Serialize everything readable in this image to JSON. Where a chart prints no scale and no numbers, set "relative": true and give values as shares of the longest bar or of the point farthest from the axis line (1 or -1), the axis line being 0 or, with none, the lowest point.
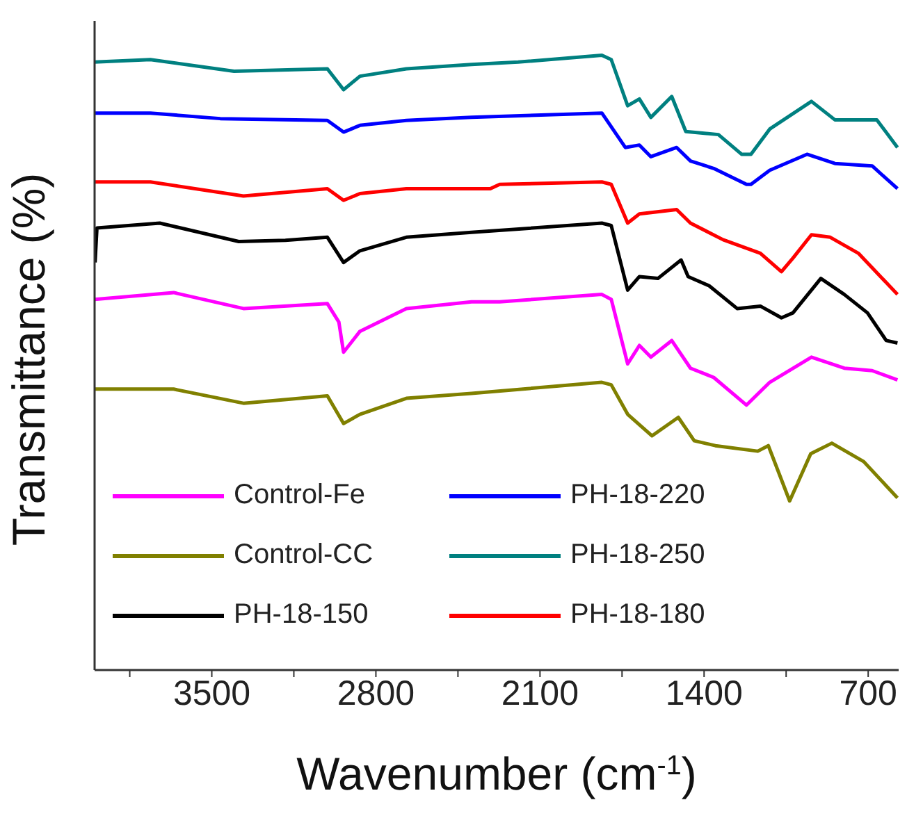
{
  "chart_data": {
    "type": "line",
    "xlabel": "Wavenumber (cm$^{-1}$)",
    "ylabel": "Transmittance (%)",
    "relative": true,
    "tick_labels": "x",
    "legend": "bottom left",
    "grid": false,
    "marker": "none",
    "line_style": "solid",
    "xlim": [
      4000,
      570
    ],
    "xticks": [
      {
        "value": 3850,
        "label": null
      },
      3500,
      {
        "value": 3150,
        "label": null
      },
      2800,
      {
        "value": 2450,
        "label": null
      },
      2100,
      {
        "value": 1750,
        "label": null
      },
      1400,
      {
        "value": 1050,
        "label": null
      },
      700
    ],
    "series": [
      {
        "name": "Control-Fe",
        "color": "#ff00ff",
        "x": [
          4000,
          3663,
          3365,
          3007,
          2958,
          2938,
          2868,
          2670,
          2392,
          2272,
          1836,
          1796,
          1726,
          1676,
          1627,
          1538,
          1458,
          1359,
          1219,
          1120,
          942,
          802,
          683,
          575
        ],
        "values": [
          0.603,
          0.614,
          0.588,
          0.596,
          0.566,
          0.517,
          0.551,
          0.588,
          0.599,
          0.599,
          0.611,
          0.603,
          0.498,
          0.528,
          0.509,
          0.536,
          0.491,
          0.476,
          0.431,
          0.468,
          0.509,
          0.491,
          0.487,
          0.472
        ]
      },
      {
        "name": "Control-CC",
        "color": "#808000",
        "x": [
          4000,
          3663,
          3365,
          3007,
          2938,
          2868,
          2670,
          2392,
          1836,
          1796,
          1726,
          1622,
          1510,
          1442,
          1352,
          1171,
          1126,
          1035,
          945,
          855,
          719,
          575
        ],
        "values": [
          0.457,
          0.457,
          0.434,
          0.446,
          0.401,
          0.416,
          0.442,
          0.45,
          0.468,
          0.464,
          0.416,
          0.381,
          0.411,
          0.373,
          0.365,
          0.356,
          0.365,
          0.275,
          0.352,
          0.369,
          0.339,
          0.28
        ]
      },
      {
        "name": "PH-18-150",
        "color": "#000000",
        "x": [
          3998,
          3990,
          3722,
          3385,
          3186,
          3007,
          2938,
          2868,
          2670,
          2392,
          1836,
          1796,
          1726,
          1676,
          1597,
          1498,
          1468,
          1378,
          1259,
          1160,
          1070,
          1021,
          902,
          802,
          703,
          623,
          575
        ],
        "values": [
          0.663,
          0.719,
          0.727,
          0.697,
          0.699,
          0.704,
          0.663,
          0.682,
          0.704,
          0.712,
          0.727,
          0.723,
          0.618,
          0.64,
          0.637,
          0.667,
          0.64,
          0.625,
          0.588,
          0.592,
          0.573,
          0.581,
          0.637,
          0.611,
          0.581,
          0.536,
          0.532
        ]
      },
      {
        "name": "PH-18-220",
        "color": "#0000ff",
        "x": [
          4000,
          3762,
          3464,
          3007,
          2938,
          2868,
          2670,
          2392,
          1836,
          1736,
          1676,
          1627,
          1517,
          1458,
          1359,
          1219,
          1200,
          1120,
          961,
          842,
          683,
          575
        ],
        "values": [
          0.906,
          0.906,
          0.897,
          0.894,
          0.875,
          0.886,
          0.894,
          0.899,
          0.906,
          0.85,
          0.854,
          0.835,
          0.85,
          0.828,
          0.816,
          0.79,
          0.79,
          0.813,
          0.839,
          0.824,
          0.82,
          0.783
        ]
      },
      {
        "name": "PH-18-250",
        "color": "#008080",
        "x": [
          4000,
          3762,
          3405,
          3007,
          2938,
          2868,
          2670,
          2392,
          2193,
          1836,
          1796,
          1726,
          1676,
          1627,
          1538,
          1478,
          1339,
          1240,
          1200,
          1120,
          942,
          842,
          663,
          575
        ],
        "values": [
          0.989,
          0.993,
          0.974,
          0.978,
          0.944,
          0.966,
          0.978,
          0.985,
          0.989,
          1.0,
          0.993,
          0.918,
          0.929,
          0.899,
          0.933,
          0.876,
          0.871,
          0.839,
          0.839,
          0.88,
          0.925,
          0.895,
          0.895,
          0.85
        ]
      },
      {
        "name": "PH-18-180",
        "color": "#ff0000",
        "x": [
          4000,
          3762,
          3365,
          3007,
          2938,
          2868,
          2670,
          2312,
          2272,
          1836,
          1796,
          1726,
          1676,
          1517,
          1458,
          1319,
          1160,
          1070,
          1021,
          942,
          862,
          742,
          575
        ],
        "values": [
          0.794,
          0.794,
          0.771,
          0.783,
          0.764,
          0.775,
          0.783,
          0.783,
          0.79,
          0.794,
          0.79,
          0.727,
          0.742,
          0.749,
          0.727,
          0.7,
          0.678,
          0.648,
          0.67,
          0.708,
          0.704,
          0.678,
          0.611
        ]
      }
    ]
  }
}
